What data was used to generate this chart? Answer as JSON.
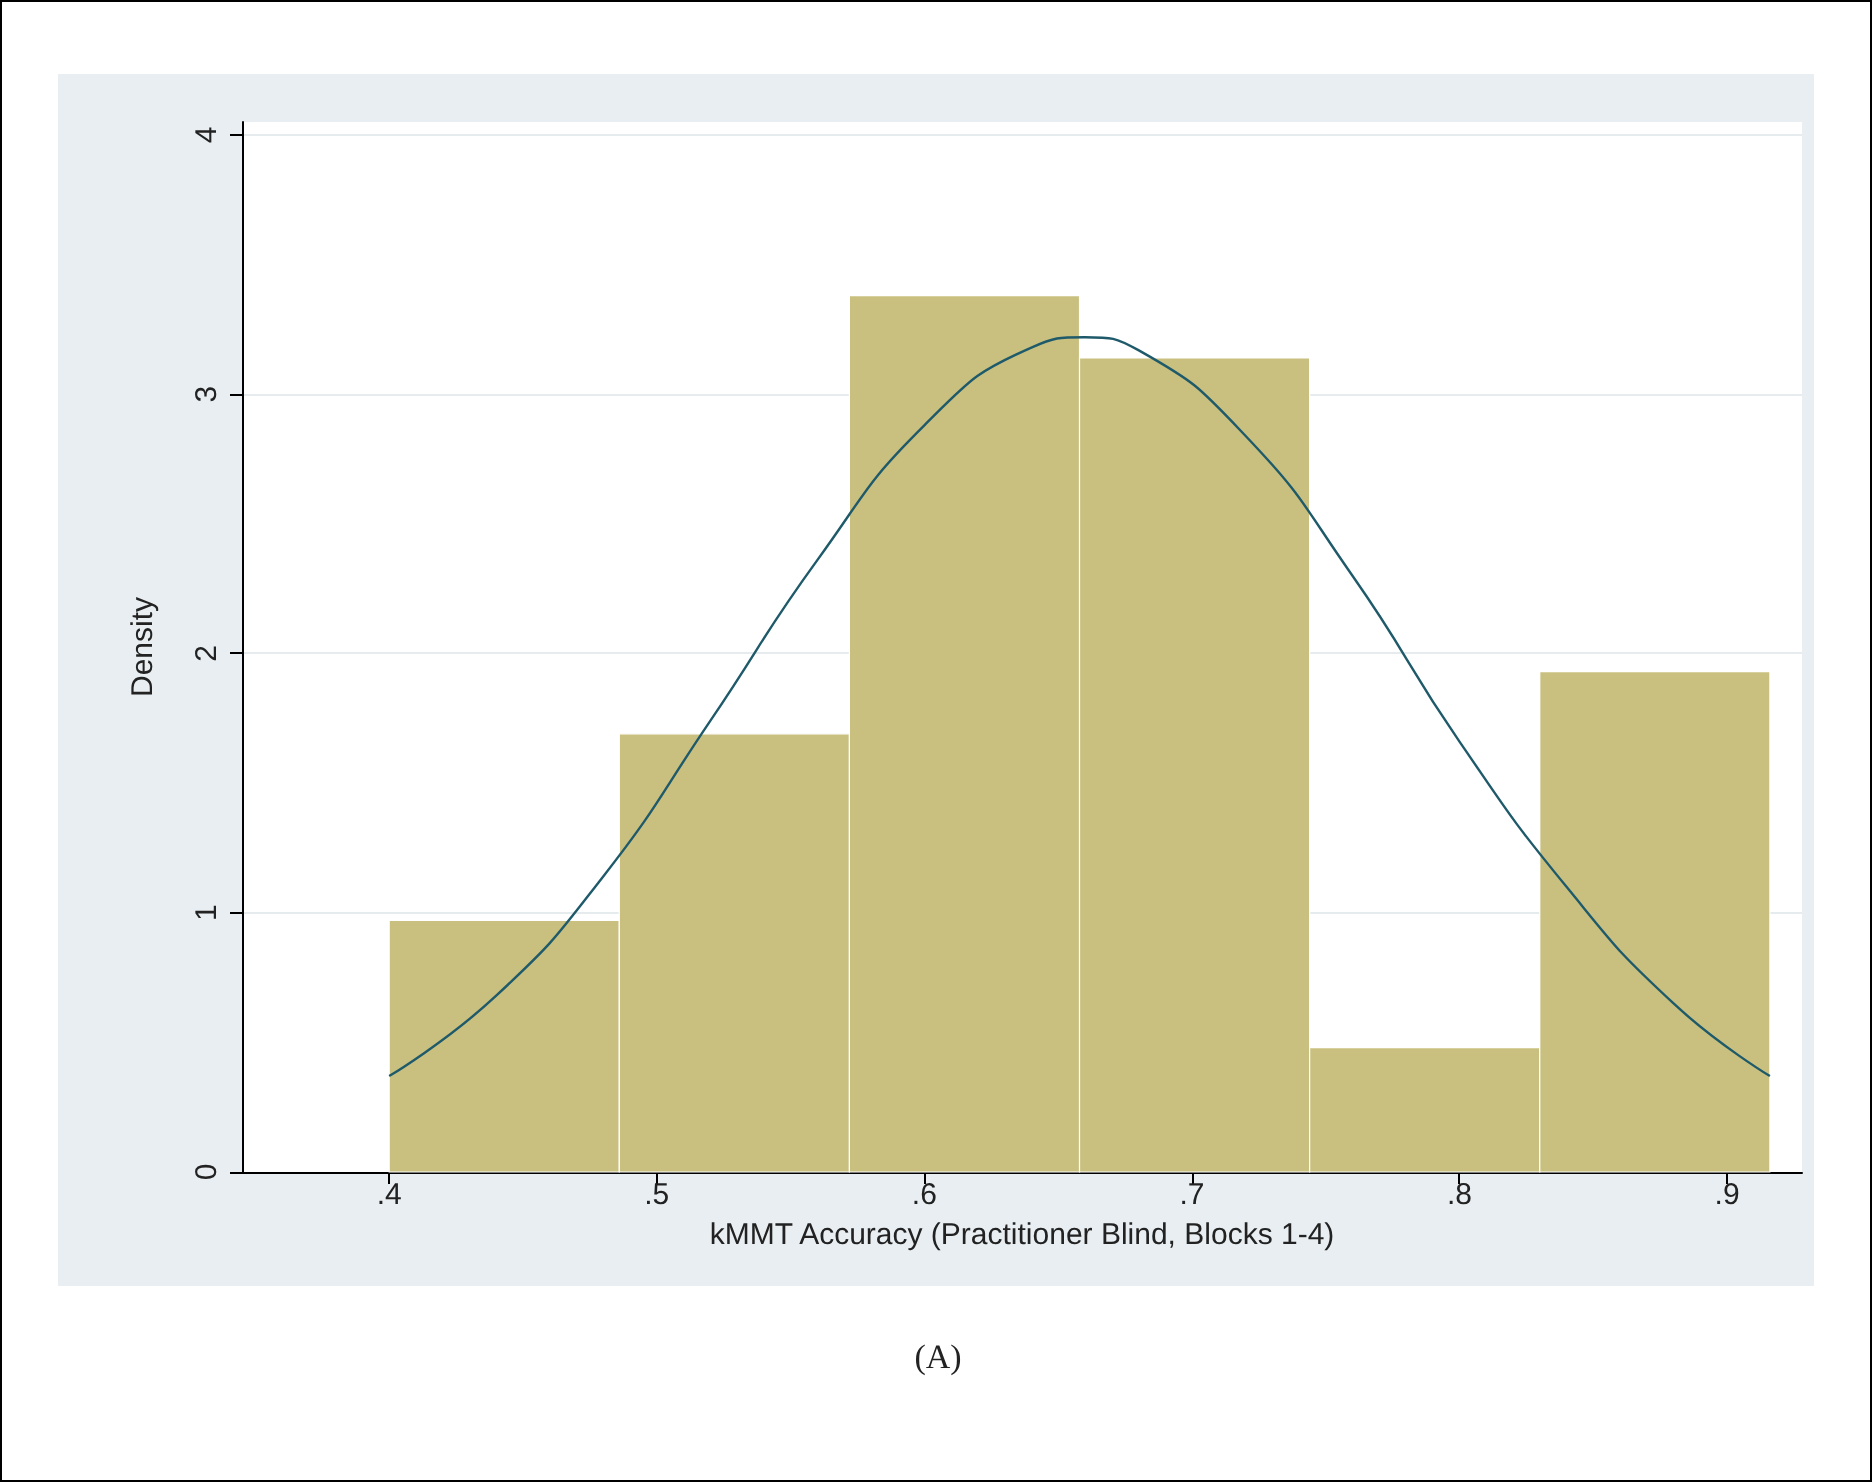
{
  "chart_data": {
    "type": "histogram",
    "xlabel": "kMMT Accuracy (Practitioner Blind, Blocks 1-4)",
    "ylabel": "Density",
    "annotations": [
      "(A)"
    ],
    "bins": [
      0.4,
      0.486,
      0.572,
      0.658,
      0.744,
      0.83,
      0.916
    ],
    "values": [
      0.97,
      1.69,
      3.38,
      3.14,
      0.48,
      1.93
    ],
    "color": "#c9c07f",
    "series": [
      {
        "type": "line",
        "color": "#1f5a6b",
        "x": [
          0.4,
          0.44,
          0.48,
          0.52,
          0.56,
          0.6,
          0.64,
          0.66,
          0.68,
          0.72,
          0.76,
          0.8,
          0.84,
          0.88,
          0.916
        ],
        "values": [
          0.37,
          0.68,
          1.14,
          1.74,
          2.36,
          2.88,
          3.18,
          3.22,
          3.17,
          2.84,
          2.3,
          1.66,
          1.1,
          0.65,
          0.37
        ]
      }
    ],
    "xlim": [
      0.345,
      0.928
    ],
    "xticks": [
      {
        "value": 0.4,
        "label": ".4"
      },
      {
        "value": 0.5,
        "label": ".5"
      },
      {
        "value": 0.6,
        "label": ".6"
      },
      {
        "value": 0.7,
        "label": ".7"
      },
      {
        "value": 0.8,
        "label": ".8"
      },
      {
        "value": 0.9,
        "label": ".9"
      }
    ],
    "ylim": [
      0,
      4.05
    ],
    "yticks": [
      0,
      1,
      2,
      3,
      4
    ],
    "grid": "y",
    "marker": "none"
  }
}
